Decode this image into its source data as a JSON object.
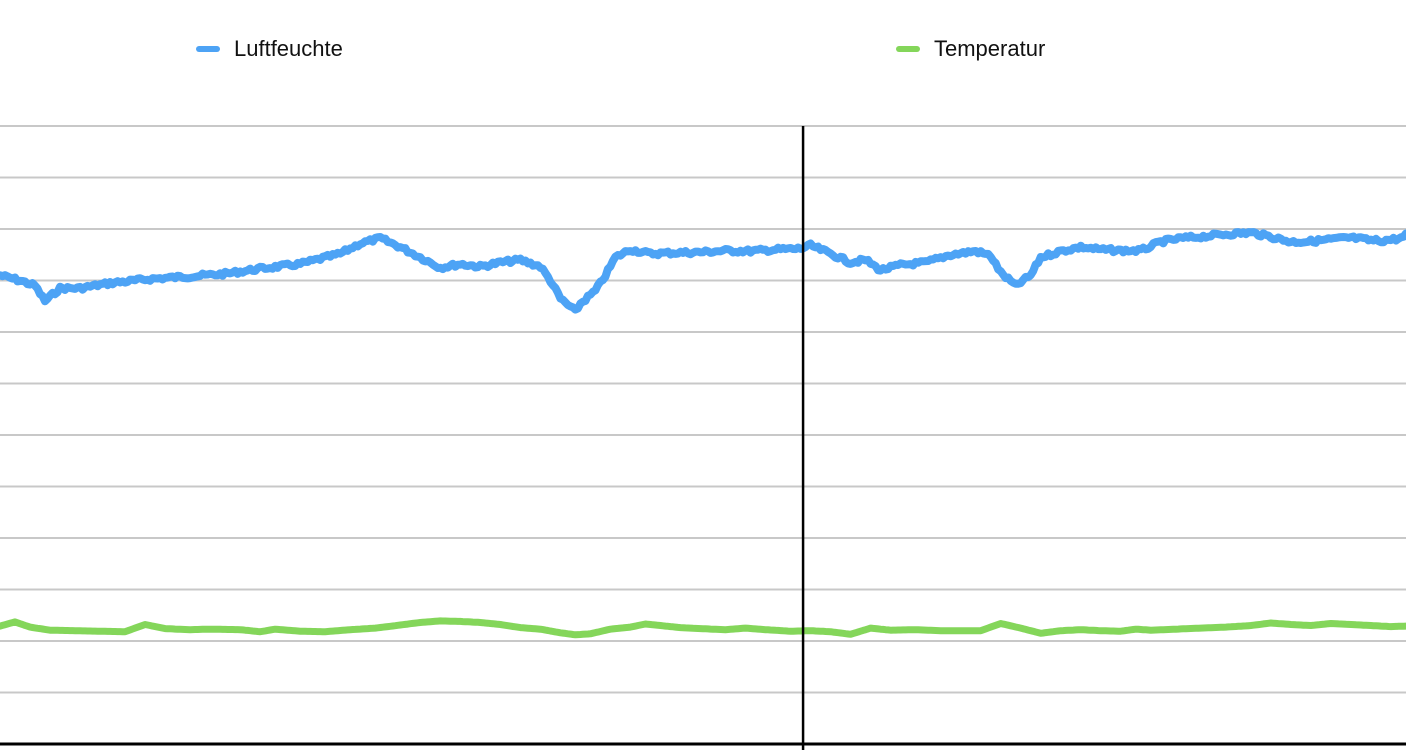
{
  "chart_data": {
    "type": "line",
    "title": "",
    "xlabel": "",
    "ylabel": "",
    "ylim": [
      0,
      120
    ],
    "gridline_step": 10,
    "grid": true,
    "legend_position": "top",
    "series": [
      {
        "name": "Luftfeuchte",
        "color": "#4da3f5",
        "noise": 4,
        "values": [
          [
            0,
            91
          ],
          [
            4,
            90
          ],
          [
            7,
            89
          ],
          [
            9,
            86
          ],
          [
            12,
            88.5
          ],
          [
            16,
            88.5
          ],
          [
            22,
            89.5
          ],
          [
            30,
            90.3
          ],
          [
            38,
            90.8
          ],
          [
            45,
            91.3
          ],
          [
            52,
            92.3
          ],
          [
            60,
            93.2
          ],
          [
            68,
            95.2
          ],
          [
            72,
            97.2
          ],
          [
            76,
            98.2
          ],
          [
            80,
            96.5
          ],
          [
            84,
            94.5
          ],
          [
            88,
            92.5
          ],
          [
            92,
            93.2
          ],
          [
            96,
            92.7
          ],
          [
            100,
            93.5
          ],
          [
            104,
            94.0
          ],
          [
            108,
            92.7
          ],
          [
            110,
            90.0
          ],
          [
            112,
            86.5
          ],
          [
            115,
            84.0
          ],
          [
            116,
            85.5
          ],
          [
            119,
            88.0
          ],
          [
            121,
            91.0
          ],
          [
            123,
            94.5
          ],
          [
            126,
            96.0
          ],
          [
            130,
            95.2
          ],
          [
            135,
            95.4
          ],
          [
            140,
            95.5
          ],
          [
            145,
            95.8
          ],
          [
            150,
            95.7
          ],
          [
            155,
            96.0
          ],
          [
            160,
            96.2
          ],
          [
            162,
            96.8
          ],
          [
            166,
            95.2
          ],
          [
            170,
            93.5
          ],
          [
            173,
            94.0
          ],
          [
            176,
            92.0
          ],
          [
            180,
            93.0
          ],
          [
            185,
            93.5
          ],
          [
            190,
            95.0
          ],
          [
            195,
            95.7
          ],
          [
            198,
            94.8
          ],
          [
            200,
            91.5
          ],
          [
            203,
            89.0
          ],
          [
            206,
            91.0
          ],
          [
            208,
            94.5
          ],
          [
            212,
            95.7
          ],
          [
            216,
            96.5
          ],
          [
            220,
            96.0
          ],
          [
            224,
            95.8
          ],
          [
            228,
            95.8
          ],
          [
            232,
            97.5
          ],
          [
            236,
            98.2
          ],
          [
            240,
            98.5
          ],
          [
            245,
            99.0
          ],
          [
            250,
            99.3
          ],
          [
            254,
            98.5
          ],
          [
            258,
            97.5
          ],
          [
            262,
            97.6
          ],
          [
            266,
            98.0
          ],
          [
            270,
            98.3
          ],
          [
            274,
            97.8
          ],
          [
            276,
            97.7
          ],
          [
            280,
            98.2
          ],
          [
            281,
            98.8
          ]
        ]
      },
      {
        "name": "Temperatur",
        "color": "#84d65a",
        "noise": 0,
        "values": [
          [
            0,
            22.9
          ],
          [
            3,
            23.7
          ],
          [
            6,
            22.7
          ],
          [
            10,
            22.1
          ],
          [
            15,
            22.0
          ],
          [
            20,
            21.9
          ],
          [
            25,
            21.8
          ],
          [
            29,
            23.2
          ],
          [
            33,
            22.4
          ],
          [
            38,
            22.2
          ],
          [
            42,
            22.3
          ],
          [
            48,
            22.2
          ],
          [
            52,
            21.8
          ],
          [
            55,
            22.3
          ],
          [
            60,
            21.9
          ],
          [
            65,
            21.8
          ],
          [
            70,
            22.2
          ],
          [
            75,
            22.5
          ],
          [
            80,
            23.1
          ],
          [
            84,
            23.6
          ],
          [
            88,
            23.9
          ],
          [
            92,
            23.8
          ],
          [
            96,
            23.6
          ],
          [
            100,
            23.2
          ],
          [
            104,
            22.6
          ],
          [
            108,
            22.3
          ],
          [
            112,
            21.6
          ],
          [
            115,
            21.2
          ],
          [
            118,
            21.4
          ],
          [
            122,
            22.3
          ],
          [
            126,
            22.7
          ],
          [
            129,
            23.3
          ],
          [
            132,
            23.0
          ],
          [
            136,
            22.6
          ],
          [
            140,
            22.4
          ],
          [
            145,
            22.2
          ],
          [
            149,
            22.5
          ],
          [
            153,
            22.2
          ],
          [
            158,
            21.9
          ],
          [
            162,
            22.0
          ],
          [
            166,
            21.8
          ],
          [
            170,
            21.3
          ],
          [
            174,
            22.5
          ],
          [
            178,
            22.1
          ],
          [
            183,
            22.2
          ],
          [
            188,
            22.0
          ],
          [
            192,
            22.0
          ],
          [
            196,
            22.0
          ],
          [
            200,
            23.4
          ],
          [
            204,
            22.5
          ],
          [
            208,
            21.5
          ],
          [
            212,
            22.0
          ],
          [
            216,
            22.2
          ],
          [
            220,
            22.0
          ],
          [
            224,
            21.9
          ],
          [
            227,
            22.3
          ],
          [
            230,
            22.1
          ],
          [
            235,
            22.3
          ],
          [
            240,
            22.5
          ],
          [
            245,
            22.7
          ],
          [
            250,
            23.0
          ],
          [
            254,
            23.5
          ],
          [
            258,
            23.2
          ],
          [
            262,
            23.0
          ],
          [
            266,
            23.4
          ],
          [
            270,
            23.2
          ],
          [
            274,
            23.0
          ],
          [
            278,
            22.8
          ],
          [
            281,
            22.9
          ]
        ]
      }
    ],
    "x_range": [
      0,
      281
    ],
    "marker_x": 160.5,
    "colors": {
      "grid": "#c8c8c8",
      "axis": "#000000",
      "marker": "#000000"
    }
  }
}
